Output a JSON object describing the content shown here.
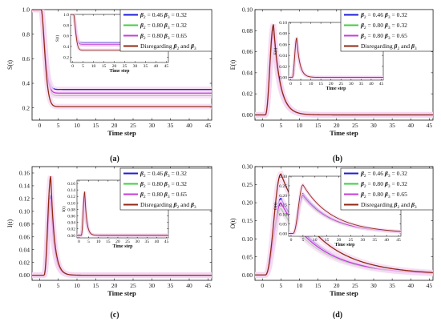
{
  "colors": {
    "blue": "#1f1fd6",
    "green": "#3fcf3f",
    "magenta": "#c53fd9",
    "brown": "#8f2a16",
    "glow": "#f5d7f2"
  },
  "legend": [
    {
      "id": "b046",
      "beta": "β",
      "sub2": "2",
      "mid": " = 0.46 ",
      "beta3": "β",
      "sub3": "3",
      "tail": " = 0.32",
      "colorKey": "blue"
    },
    {
      "id": "b080a",
      "beta": "β",
      "sub2": "2",
      "mid": " = 0.80 ",
      "beta3": "β",
      "sub3": "3",
      "tail": " = 0.32",
      "colorKey": "green"
    },
    {
      "id": "b080b",
      "beta": "β",
      "sub2": "2",
      "mid": " = 0.80 ",
      "beta3": "β",
      "sub3": "3",
      "tail": " = 0.65",
      "colorKey": "magenta"
    },
    {
      "id": "disreg",
      "prefix": "Disregarding ",
      "beta": "β",
      "sub2": "2",
      "mid": " and ",
      "beta3": "β",
      "sub3": "3",
      "tail": "",
      "colorKey": "brown"
    }
  ],
  "chart_data": [
    {
      "type": "line",
      "panel_label": "(a)",
      "ylabel": "S(t)",
      "xlabel": "Time step",
      "xlim": [
        -2,
        46
      ],
      "ylim": [
        0.1,
        1.0
      ],
      "xticks": [
        0,
        5,
        10,
        15,
        20,
        25,
        30,
        35,
        40,
        45
      ],
      "yticks": [
        0.2,
        0.4,
        0.6,
        0.8,
        1.0
      ],
      "ytick_labels": [
        "0.2",
        "0.4",
        "0.6",
        "0.8",
        "1.0"
      ],
      "shape": {
        "kind": "decay",
        "start": 1.0,
        "t0": 0.5,
        "rate": 1.25
      },
      "series": [
        {
          "legend": 0,
          "values_final": 0.35
        },
        {
          "legend": 1,
          "values_final": 0.3
        },
        {
          "legend": 2,
          "values_final": 0.32
        },
        {
          "legend": 3,
          "values_final": 0.21
        }
      ],
      "inset": {
        "ylabel": "S(t)",
        "xlabel": "Time step",
        "xlim": [
          -1,
          46
        ],
        "ylim": [
          0.1,
          1.0
        ],
        "xticks": [
          0,
          5,
          10,
          15,
          20,
          25,
          30,
          35,
          40,
          45
        ],
        "yticks": [
          0.2,
          0.4,
          0.6,
          0.8,
          1.0
        ],
        "ytick_labels": [
          "0.2",
          "0.4",
          "0.6",
          "0.8",
          "1.0"
        ],
        "shape": {
          "kind": "decay",
          "start": 1.0,
          "t0": 0.5,
          "rate": 1.25
        },
        "series": [
          {
            "legend": 0,
            "values_final": 0.47
          },
          {
            "legend": 1,
            "values_final": 0.42
          },
          {
            "legend": 2,
            "values_final": 0.44
          },
          {
            "legend": 3,
            "values_final": 0.33
          }
        ]
      }
    },
    {
      "type": "line",
      "panel_label": "(b)",
      "ylabel": "E(t)",
      "xlabel": "Time step",
      "xlim": [
        -2,
        46
      ],
      "ylim": [
        -0.005,
        0.1
      ],
      "xticks": [
        0,
        5,
        10,
        15,
        20,
        25,
        30,
        35,
        40,
        45
      ],
      "yticks": [
        0.0,
        0.02,
        0.04,
        0.06,
        0.08,
        0.1
      ],
      "ytick_labels": [
        "0.00",
        "0.02",
        "0.04",
        "0.06",
        "0.08",
        "0.10"
      ],
      "shape": {
        "kind": "pulse",
        "t0": 0.8,
        "peak_t": 3.0,
        "rise": 2.2,
        "tail": 1.8
      },
      "series": [
        {
          "legend": 0,
          "peak": 0.082
        },
        {
          "legend": 1,
          "peak": 0.076
        },
        {
          "legend": 2,
          "peak": 0.079
        },
        {
          "legend": 3,
          "peak": 0.086
        }
      ],
      "inset": {
        "ylabel": "E(t)",
        "xlabel": "Time step",
        "xlim": [
          -1,
          46
        ],
        "ylim": [
          -0.005,
          0.1
        ],
        "xticks": [
          0,
          5,
          10,
          15,
          20,
          25,
          30,
          35,
          40,
          45
        ],
        "yticks": [
          0.0,
          0.02,
          0.04,
          0.06,
          0.08,
          0.1
        ],
        "ytick_labels": [
          "0.00",
          "0.02",
          "0.04",
          "0.06",
          "0.08",
          "0.10"
        ],
        "shape": {
          "kind": "pulse",
          "t0": 0.8,
          "peak_t": 3.0,
          "rise": 2.2,
          "tail": 1.6
        },
        "series": [
          {
            "legend": 0,
            "peak": 0.068
          },
          {
            "legend": 1,
            "peak": 0.064
          },
          {
            "legend": 2,
            "peak": 0.066
          },
          {
            "legend": 3,
            "peak": 0.072
          }
        ]
      }
    },
    {
      "type": "line",
      "panel_label": "(c)",
      "ylabel": "I(t)",
      "xlabel": "Time step",
      "xlim": [
        -2,
        46
      ],
      "ylim": [
        -0.008,
        0.17
      ],
      "xticks": [
        0,
        5,
        10,
        15,
        20,
        25,
        30,
        35,
        40,
        45
      ],
      "yticks": [
        0.0,
        0.02,
        0.04,
        0.06,
        0.08,
        0.1,
        0.12,
        0.14,
        0.16
      ],
      "ytick_labels": [
        "0.00",
        "0.02",
        "0.04",
        "0.06",
        "0.08",
        "0.10",
        "0.12",
        "0.14",
        "0.16"
      ],
      "shape": {
        "kind": "pulse",
        "t0": 1.2,
        "peak_t": 3.0,
        "rise": 1.8,
        "tail": 1.0
      },
      "series": [
        {
          "legend": 0,
          "peak": 0.125
        },
        {
          "legend": 1,
          "peak": 0.112
        },
        {
          "legend": 2,
          "peak": 0.118
        },
        {
          "legend": 3,
          "peak": 0.155
        }
      ],
      "inset": {
        "ylabel": "I(t)",
        "xlabel": "Time step",
        "xlim": [
          -1,
          46
        ],
        "ylim": [
          -0.008,
          0.17
        ],
        "xticks": [
          0,
          5,
          10,
          15,
          20,
          25,
          30,
          35,
          40,
          45
        ],
        "yticks": [
          0.0,
          0.02,
          0.04,
          0.06,
          0.08,
          0.1,
          0.12,
          0.14,
          0.16
        ],
        "ytick_labels": [
          "0.00",
          "0.02",
          "0.04",
          "0.06",
          "0.08",
          "0.10",
          "0.12",
          "0.14",
          "0.16"
        ],
        "shape": {
          "kind": "pulse",
          "t0": 1.2,
          "peak_t": 3.0,
          "rise": 1.8,
          "tail": 1.0
        },
        "series": [
          {
            "legend": 0,
            "peak": 0.12
          },
          {
            "legend": 1,
            "peak": 0.11
          },
          {
            "legend": 2,
            "peak": 0.115
          },
          {
            "legend": 3,
            "peak": 0.135
          }
        ]
      }
    },
    {
      "type": "line",
      "panel_label": "(d)",
      "ylabel": "O(t)",
      "xlabel": "Time step",
      "xlim": [
        -2,
        46
      ],
      "ylim": [
        -0.015,
        0.3
      ],
      "xticks": [
        0,
        5,
        10,
        15,
        20,
        25,
        30,
        35,
        40,
        45
      ],
      "yticks": [
        0.0,
        0.05,
        0.1,
        0.15,
        0.2,
        0.25,
        0.3
      ],
      "ytick_labels": [
        "0.00",
        "0.05",
        "0.10",
        "0.15",
        "0.20",
        "0.25",
        "0.30"
      ],
      "shape": {
        "kind": "pulse",
        "t0": 0.8,
        "peak_t": 5.0,
        "rise": 3.0,
        "tail": 13.0
      },
      "series": [
        {
          "legend": 0,
          "peak": 0.212
        },
        {
          "legend": 1,
          "peak": 0.185
        },
        {
          "legend": 2,
          "peak": 0.2
        },
        {
          "legend": 3,
          "peak": 0.28
        }
      ],
      "inset": {
        "ylabel": "O(t)",
        "xlabel": "Time step",
        "xlim": [
          -1,
          46
        ],
        "ylim": [
          -0.015,
          0.3
        ],
        "xticks": [
          0,
          5,
          10,
          15,
          20,
          25,
          30,
          35,
          40,
          45
        ],
        "yticks": [
          0.0,
          0.05,
          0.1,
          0.15,
          0.2,
          0.25,
          0.3
        ],
        "ytick_labels": [
          "0.00",
          "0.05",
          "0.10",
          "0.15",
          "0.20",
          "0.25",
          "0.30"
        ],
        "shape": {
          "kind": "pulse",
          "t0": 0.8,
          "peak_t": 5.0,
          "rise": 3.0,
          "tail": 16.0
        },
        "series": [
          {
            "legend": 0,
            "peak": 0.21
          },
          {
            "legend": 1,
            "peak": 0.19
          },
          {
            "legend": 2,
            "peak": 0.2
          },
          {
            "legend": 3,
            "peak": 0.255
          }
        ]
      }
    }
  ]
}
